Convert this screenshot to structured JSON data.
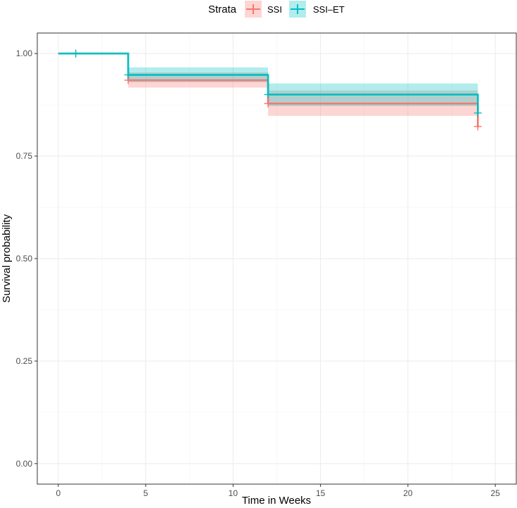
{
  "chart_data": {
    "type": "line",
    "subtype": "kaplan-meier step curve with confidence bands",
    "title": "",
    "xlabel": "Time in Weeks",
    "ylabel": "Survival probability",
    "xlim": [
      -1.2,
      26.2
    ],
    "ylim": [
      -0.05,
      1.05
    ],
    "x_ticks": [
      0,
      5,
      10,
      15,
      20,
      25
    ],
    "x_tick_labels": [
      "0",
      "5",
      "10",
      "15",
      "20",
      "25"
    ],
    "y_ticks": [
      0.0,
      0.25,
      0.5,
      0.75,
      1.0
    ],
    "y_tick_labels": [
      "0.00",
      "0.25",
      "0.50",
      "0.75",
      "1.00"
    ],
    "grid": true,
    "legend": {
      "title": "Strata",
      "position": "top",
      "entries": [
        "SSI",
        "SSI–ET"
      ]
    },
    "series": [
      {
        "name": "SSI",
        "color": "#F8766D",
        "steps": [
          {
            "x": 0,
            "y": 1.0,
            "lower": 1.0,
            "upper": 1.0
          },
          {
            "x": 4,
            "y": 0.935,
            "lower": 0.917,
            "upper": 0.954
          },
          {
            "x": 12,
            "y": 0.878,
            "lower": 0.848,
            "upper": 0.91
          },
          {
            "x": 24,
            "y": 0.82,
            "lower": 0.82,
            "upper": 0.82
          }
        ],
        "censor_marks": [
          {
            "x": 1,
            "y": 1.0
          },
          {
            "x": 4,
            "y": 0.935
          },
          {
            "x": 12,
            "y": 0.878
          },
          {
            "x": 24,
            "y": 0.822
          }
        ]
      },
      {
        "name": "SSI–ET",
        "color": "#00BFC4",
        "steps": [
          {
            "x": 0,
            "y": 1.0,
            "lower": 1.0,
            "upper": 1.0
          },
          {
            "x": 4,
            "y": 0.948,
            "lower": 0.93,
            "upper": 0.966
          },
          {
            "x": 12,
            "y": 0.9,
            "lower": 0.872,
            "upper": 0.927
          },
          {
            "x": 24,
            "y": 0.853,
            "lower": 0.853,
            "upper": 0.853
          }
        ],
        "censor_marks": [
          {
            "x": 1,
            "y": 1.0
          },
          {
            "x": 4,
            "y": 0.948
          },
          {
            "x": 12,
            "y": 0.9
          },
          {
            "x": 24,
            "y": 0.855
          }
        ]
      }
    ]
  }
}
